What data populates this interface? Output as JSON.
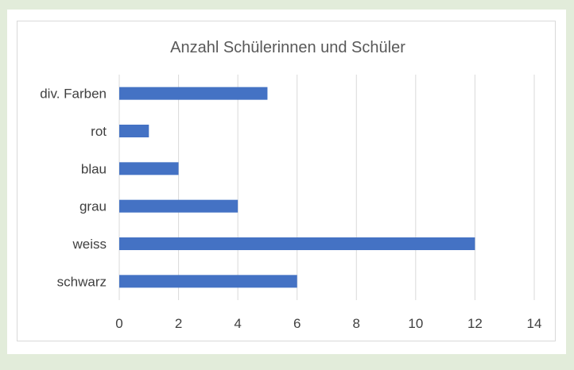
{
  "chart_data": {
    "type": "bar",
    "orientation": "horizontal",
    "title": "Anzahl Schülerinnen und Schüler",
    "categories": [
      "div. Farben",
      "rot",
      "blau",
      "grau",
      "weiss",
      "schwarz"
    ],
    "values": [
      5,
      1,
      2,
      4,
      12,
      6
    ],
    "xlim": [
      0,
      14
    ],
    "xticks": [
      "0",
      "2",
      "4",
      "6",
      "8",
      "10",
      "12",
      "14"
    ],
    "grid": true,
    "legend": "none",
    "bar_color": "#4472c4",
    "grid_color": "#d9d9d9"
  }
}
